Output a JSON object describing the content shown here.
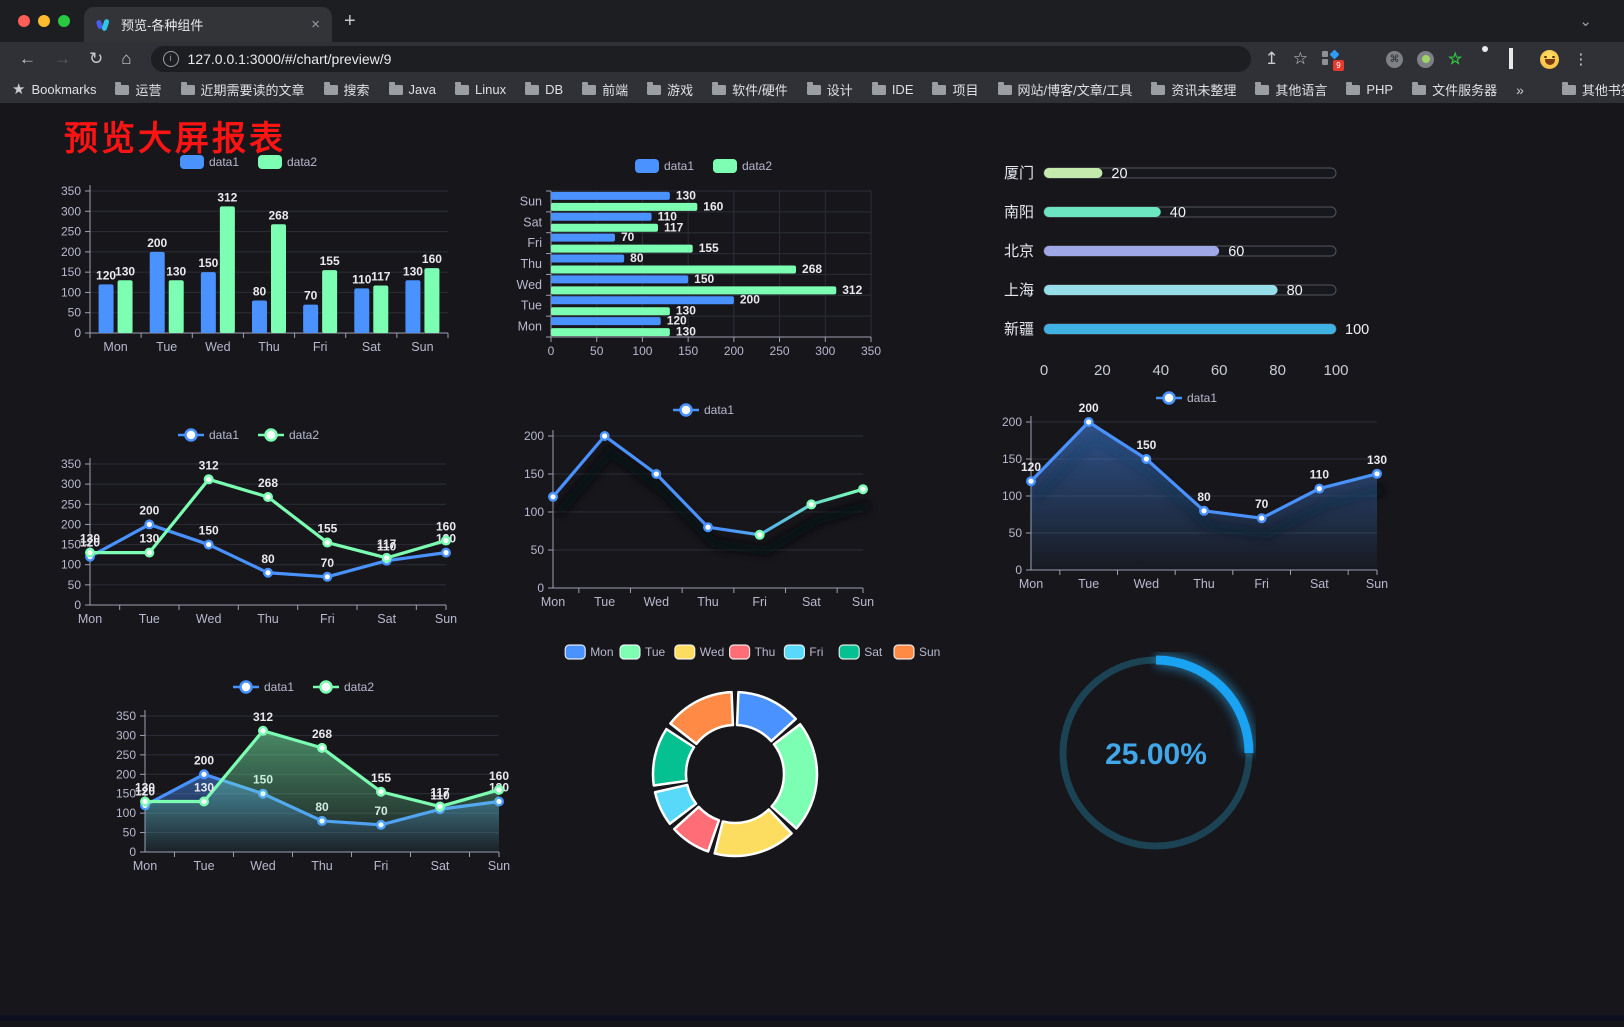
{
  "browser": {
    "traffic_lights": [
      "#ff5f57",
      "#febc2e",
      "#28c840"
    ],
    "tab": {
      "title": "预览-各种组件",
      "close_label": "×",
      "new_tab_label": "+",
      "chevron": "⌄"
    },
    "toolbar": {
      "url": "127.0.0.1:3000/#/chart/preview/9",
      "back_icon": "←",
      "forward_icon": "→",
      "reload_icon": "↻",
      "home_icon": "⌂",
      "share_icon": "↥",
      "star_icon": "☆",
      "extension_badge": "9",
      "menu_icon": "⋮",
      "green_star_icon": "☆",
      "cmd_icon": "⌘"
    },
    "bookmarks": {
      "root_label": "Bookmarks",
      "folders": [
        "运营",
        "近期需要读的文章",
        "搜索",
        "Java",
        "Linux",
        "DB",
        "前端",
        "游戏",
        "软件/硬件",
        "设计",
        "IDE",
        "项目",
        "网站/博客/文章/工具",
        "资讯未整理",
        "其他语言",
        "PHP",
        "文件服务器"
      ],
      "overflow": "»",
      "other_label": "其他书签"
    }
  },
  "page": {
    "title": "预览大屏报表",
    "title_color": "#fa1414",
    "background": "#16161b"
  },
  "chart_data": [
    {
      "id": "bar-grouped",
      "type": "bar",
      "categories": [
        "Mon",
        "Tue",
        "Wed",
        "Thu",
        "Fri",
        "Sat",
        "Sun"
      ],
      "series": [
        {
          "name": "data1",
          "color": "#4992ff",
          "values": [
            120,
            200,
            150,
            80,
            70,
            110,
            130
          ]
        },
        {
          "name": "data2",
          "color": "#7cffb2",
          "values": [
            130,
            130,
            312,
            268,
            155,
            117,
            160
          ]
        }
      ],
      "ylim": [
        0,
        350
      ],
      "yticks": [
        0,
        50,
        100,
        150,
        200,
        250,
        300,
        350
      ],
      "legend": true,
      "grid": true
    },
    {
      "id": "hbar-grouped",
      "type": "hbar",
      "categories": [
        "Mon",
        "Tue",
        "Wed",
        "Thu",
        "Fri",
        "Sat",
        "Sun"
      ],
      "series": [
        {
          "name": "data1",
          "color": "#4992ff",
          "values": [
            120,
            200,
            150,
            80,
            70,
            110,
            130
          ]
        },
        {
          "name": "data2",
          "color": "#7cffb2",
          "values": [
            130,
            130,
            312,
            268,
            155,
            117,
            160
          ]
        }
      ],
      "xlim": [
        0,
        350
      ],
      "xticks": [
        0,
        50,
        100,
        150,
        200,
        250,
        300,
        350
      ],
      "legend": true,
      "grid": true
    },
    {
      "id": "progress-bars",
      "type": "progress",
      "rows": [
        {
          "label": "厦门",
          "value": 20,
          "color": "#c4ebad"
        },
        {
          "label": "南阳",
          "value": 40,
          "color": "#6be6c1"
        },
        {
          "label": "北京",
          "value": 60,
          "color": "#a0a7e6"
        },
        {
          "label": "上海",
          "value": 80,
          "color": "#96dee8"
        },
        {
          "label": "新疆",
          "value": 100,
          "color": "#3fb1e3"
        }
      ],
      "xlim": [
        0,
        100
      ],
      "xticks": [
        0,
        20,
        40,
        60,
        80,
        100
      ]
    },
    {
      "id": "line-two-series",
      "type": "line",
      "categories": [
        "Mon",
        "Tue",
        "Wed",
        "Thu",
        "Fri",
        "Sat",
        "Sun"
      ],
      "series": [
        {
          "name": "data1",
          "color": "#4992ff",
          "values": [
            120,
            200,
            150,
            80,
            70,
            110,
            130
          ]
        },
        {
          "name": "data2",
          "color": "#7cffb2",
          "values": [
            130,
            130,
            312,
            268,
            155,
            117,
            160
          ]
        }
      ],
      "ylim": [
        0,
        350
      ],
      "yticks": [
        0,
        50,
        100,
        150,
        200,
        250,
        300,
        350
      ],
      "legend": true,
      "labels": true,
      "grid": true
    },
    {
      "id": "line-gradient",
      "type": "line",
      "categories": [
        "Mon",
        "Tue",
        "Wed",
        "Thu",
        "Fri",
        "Sat",
        "Sun"
      ],
      "series": [
        {
          "name": "data1",
          "color": "#4992ff",
          "color2": "#7cffb2",
          "values": [
            120,
            200,
            150,
            80,
            70,
            110,
            130
          ]
        }
      ],
      "ylim": [
        0,
        200
      ],
      "yticks": [
        0,
        50,
        100,
        150,
        200
      ],
      "legend": true,
      "labels": false,
      "gradient_stroke": true,
      "shadow": true,
      "grid": true
    },
    {
      "id": "line-area",
      "type": "line",
      "categories": [
        "Mon",
        "Tue",
        "Wed",
        "Thu",
        "Fri",
        "Sat",
        "Sun"
      ],
      "series": [
        {
          "name": "data1",
          "color": "#4992ff",
          "values": [
            120,
            200,
            150,
            80,
            70,
            110,
            130
          ]
        }
      ],
      "ylim": [
        0,
        200
      ],
      "yticks": [
        0,
        50,
        100,
        150,
        200
      ],
      "legend": true,
      "labels": true,
      "area": true,
      "shadow": true,
      "grid": true
    },
    {
      "id": "line-two-area",
      "type": "line",
      "categories": [
        "Mon",
        "Tue",
        "Wed",
        "Thu",
        "Fri",
        "Sat",
        "Sun"
      ],
      "series": [
        {
          "name": "data1",
          "color": "#4992ff",
          "values": [
            120,
            200,
            150,
            80,
            70,
            110,
            130
          ]
        },
        {
          "name": "data2",
          "color": "#7cffb2",
          "values": [
            130,
            130,
            312,
            268,
            155,
            117,
            160
          ]
        }
      ],
      "ylim": [
        0,
        350
      ],
      "yticks": [
        0,
        50,
        100,
        150,
        200,
        250,
        300,
        350
      ],
      "legend": true,
      "labels": true,
      "area": true,
      "grid": true
    },
    {
      "id": "donut",
      "type": "donut",
      "categories": [
        "Mon",
        "Tue",
        "Wed",
        "Thu",
        "Fri",
        "Sat",
        "Sun"
      ],
      "values": [
        120,
        200,
        150,
        80,
        70,
        110,
        130
      ],
      "colors": [
        "#4992ff",
        "#7cffb2",
        "#fddd60",
        "#ff6e76",
        "#58d9f9",
        "#05c091",
        "#ff8a45"
      ],
      "legend": true
    },
    {
      "id": "gauge",
      "type": "gauge",
      "percent": 25,
      "value_label": "25.00%",
      "color": "#1aa3f3",
      "glow_color": "#2bb7ff",
      "track_color": "#1c4354",
      "text_color": "#41a7e8"
    }
  ]
}
